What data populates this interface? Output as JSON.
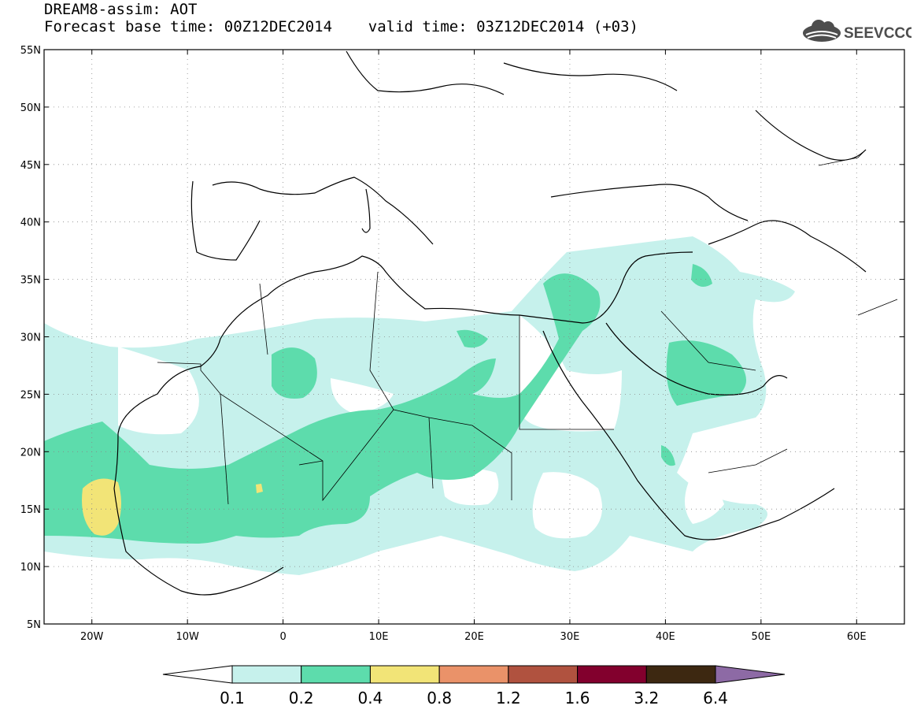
{
  "title": {
    "line1": "DREAM8-assim: AOT",
    "line2": "Forecast base time: 00Z12DEC2014    valid time: 03Z12DEC2014 (+03)"
  },
  "logo": {
    "text": "SEEVCCC",
    "icon": "cloud-icon"
  },
  "map": {
    "lat_labels": [
      "55N",
      "50N",
      "45N",
      "40N",
      "35N",
      "30N",
      "25N",
      "20N",
      "15N",
      "10N",
      "5N"
    ],
    "lon_labels": [
      "20W",
      "10W",
      "0",
      "10E",
      "20E",
      "30E",
      "40E",
      "50E",
      "60E"
    ],
    "extent": {
      "lon_min": -25,
      "lon_max": 65,
      "lat_min": 5,
      "lat_max": 55
    },
    "grid": true
  },
  "colorbar": {
    "labels": [
      "0.1",
      "0.2",
      "0.4",
      "0.8",
      "1.2",
      "1.6",
      "3.2",
      "6.4"
    ],
    "colors": [
      "#ffffff",
      "#c6f1ec",
      "#5ddcac",
      "#f2e477",
      "#ea9269",
      "#b0523f",
      "#82002d",
      "#3d2811",
      "#8d6aa5"
    ]
  }
}
